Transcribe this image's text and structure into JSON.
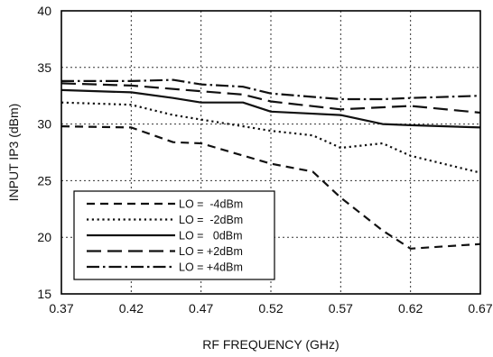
{
  "chart_data": {
    "type": "line",
    "xlabel": "RF FREQUENCY (GHz)",
    "ylabel": "INPUT IP3  (dBm)",
    "xlim": [
      0.37,
      0.67
    ],
    "ylim": [
      15,
      40
    ],
    "x_ticks": [
      "0.37",
      "0.42",
      "0.47",
      "0.52",
      "0.57",
      "0.62",
      "0.67"
    ],
    "y_ticks": [
      "15",
      "20",
      "25",
      "30",
      "35",
      "40"
    ],
    "grid": "dotted",
    "legend_position": "bottom-left",
    "series": [
      {
        "name": "LO =  -4dBm",
        "dash": "dashed",
        "x": [
          0.37,
          0.42,
          0.45,
          0.47,
          0.52,
          0.55,
          0.57,
          0.6,
          0.62,
          0.67
        ],
        "y": [
          29.8,
          29.7,
          28.4,
          28.3,
          26.5,
          25.8,
          23.5,
          20.6,
          19.0,
          19.4
        ]
      },
      {
        "name": "LO =  -2dBm",
        "dash": "dotted",
        "x": [
          0.37,
          0.42,
          0.45,
          0.47,
          0.52,
          0.55,
          0.57,
          0.6,
          0.62,
          0.67
        ],
        "y": [
          31.9,
          31.7,
          30.8,
          30.4,
          29.4,
          29.0,
          27.9,
          28.3,
          27.2,
          25.7
        ]
      },
      {
        "name": "LO =   0dBm",
        "dash": "solid",
        "x": [
          0.37,
          0.42,
          0.45,
          0.47,
          0.5,
          0.52,
          0.57,
          0.6,
          0.62,
          0.67
        ],
        "y": [
          33.0,
          32.8,
          32.3,
          31.9,
          31.9,
          31.1,
          30.8,
          30.0,
          29.9,
          29.7
        ]
      },
      {
        "name": "LO = +2dBm",
        "dash": "long-dash",
        "x": [
          0.37,
          0.42,
          0.47,
          0.5,
          0.52,
          0.57,
          0.62,
          0.67
        ],
        "y": [
          33.6,
          33.4,
          32.9,
          32.6,
          32.0,
          31.3,
          31.6,
          31.0
        ]
      },
      {
        "name": "LO = +4dBm",
        "dash": "dash-dot",
        "x": [
          0.37,
          0.42,
          0.45,
          0.47,
          0.5,
          0.52,
          0.57,
          0.6,
          0.62,
          0.67
        ],
        "y": [
          33.8,
          33.8,
          33.9,
          33.5,
          33.3,
          32.7,
          32.2,
          32.2,
          32.3,
          32.5
        ]
      }
    ]
  }
}
